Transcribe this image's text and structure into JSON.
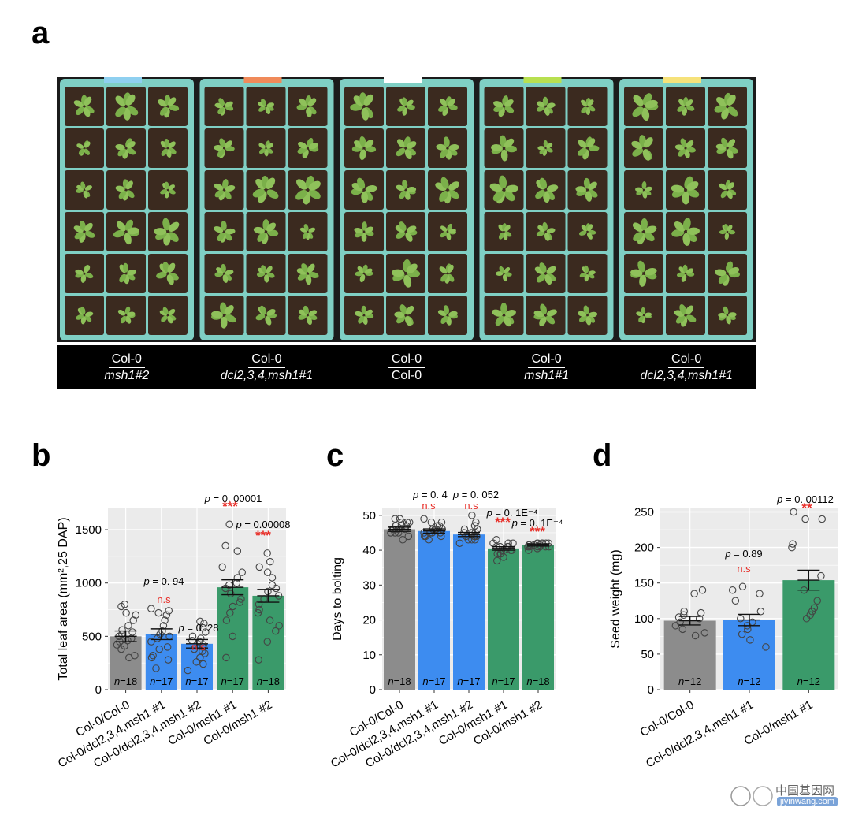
{
  "panels": {
    "a": "a",
    "b": "b",
    "c": "c",
    "d": "d"
  },
  "photo_labels": [
    {
      "top": "Col-0",
      "bottom": "msh1#2"
    },
    {
      "top": "Col-0",
      "bottom": "dcl2,3,4,msh1#1"
    },
    {
      "top": "Col-0",
      "bottom": "Col-0"
    },
    {
      "top": "Col-0",
      "bottom": "msh1#1"
    },
    {
      "top": "Col-0",
      "bottom": "dcl2,3,4,msh1#1"
    }
  ],
  "colors": {
    "grey": "#8c8c8c",
    "blue": "#3d8cf0",
    "green": "#3a9a6a",
    "red": "#e8302a",
    "panel_bg": "#ebebeb"
  },
  "chart_data": [
    {
      "type": "bar",
      "ylabel": "Total leaf area (mm²,25 DAP)",
      "ylim": [
        0,
        1700
      ],
      "yticks": [
        0,
        500,
        1000,
        1500
      ],
      "categories": [
        "Col-0/Col-0",
        "Col-0/dcl2,3,4,msh1 #1",
        "Col-0/dcl2,3,4,msh1 #2",
        "Col-0/msh1 #1",
        "Col-0/msh1 #2"
      ],
      "colors": [
        "grey",
        "blue",
        "blue",
        "green",
        "green"
      ],
      "values": [
        500,
        520,
        430,
        960,
        880
      ],
      "errors": [
        50,
        50,
        40,
        70,
        60
      ],
      "n_labels": [
        "n=18",
        "n=17",
        "n=17",
        "n=17",
        "n=18"
      ],
      "p_values": [
        "",
        "p = 0. 94",
        "p = 0. 28",
        "p = 0. 00001",
        "p = 0.00008"
      ],
      "sig": [
        "",
        "n.s",
        "n.s",
        "***",
        "***"
      ],
      "points": [
        [
          300,
          320,
          380,
          420,
          450,
          480,
          500,
          520,
          540,
          560,
          600,
          650,
          700,
          720,
          780,
          800,
          410,
          460
        ],
        [
          200,
          280,
          320,
          400,
          450,
          480,
          520,
          550,
          600,
          650,
          700,
          720,
          740,
          760,
          300,
          380,
          500
        ],
        [
          180,
          240,
          300,
          340,
          380,
          400,
          420,
          450,
          480,
          500,
          540,
          580,
          620,
          640,
          260,
          360,
          460
        ],
        [
          300,
          500,
          650,
          720,
          780,
          850,
          900,
          950,
          1000,
          1050,
          1100,
          1150,
          1300,
          1350,
          1550,
          820,
          980
        ],
        [
          280,
          450,
          550,
          650,
          720,
          800,
          850,
          880,
          920,
          980,
          1050,
          1100,
          1150,
          1200,
          1280,
          600,
          750,
          950
        ]
      ]
    },
    {
      "type": "bar",
      "ylabel": "Days to bolting",
      "ylim": [
        0,
        52
      ],
      "yticks": [
        0,
        10,
        20,
        30,
        40,
        50
      ],
      "categories": [
        "Col-0/Col-0",
        "Col-0/dcl2,3,4,msh1 #1",
        "Col-0/dcl2,3,4,msh1 #2",
        "Col-0/msh1 #1",
        "Col-0/msh1 #2"
      ],
      "colors": [
        "grey",
        "blue",
        "blue",
        "green",
        "green"
      ],
      "values": [
        46,
        45.5,
        44.5,
        40.5,
        41.5
      ],
      "errors": [
        0.6,
        0.6,
        0.6,
        0.5,
        0.3
      ],
      "n_labels": [
        "n=18",
        "n=17",
        "n=17",
        "n=17",
        "n=18"
      ],
      "p_values": [
        "",
        "p = 0. 4",
        "p = 0. 052",
        "p = 0. 1E⁻⁴",
        "p = 0. 1E⁻⁴"
      ],
      "sig": [
        "",
        "n.s",
        "n.s",
        "***",
        "***"
      ],
      "points": [
        [
          43,
          44,
          45,
          45,
          46,
          46,
          46,
          47,
          47,
          47,
          48,
          48,
          48,
          49,
          49,
          45,
          46,
          47
        ],
        [
          43,
          44,
          44,
          45,
          45,
          45,
          46,
          46,
          46,
          47,
          47,
          48,
          48,
          49,
          44,
          45,
          46
        ],
        [
          42,
          43,
          43,
          44,
          44,
          44,
          45,
          45,
          45,
          46,
          46,
          47,
          48,
          50,
          43,
          44,
          45
        ],
        [
          37,
          38,
          39,
          39,
          40,
          40,
          40,
          41,
          41,
          41,
          42,
          42,
          42,
          43,
          39,
          40,
          41
        ],
        [
          40,
          40.5,
          41,
          41,
          41,
          41.5,
          41.5,
          42,
          42,
          42,
          42,
          41,
          41,
          41.5,
          42,
          41,
          41.5,
          42
        ]
      ]
    },
    {
      "type": "bar",
      "ylabel": "Seed weight (mg)",
      "ylim": [
        0,
        255
      ],
      "yticks": [
        0,
        50,
        100,
        150,
        200,
        250
      ],
      "categories": [
        "Col-0/Col-0",
        "Col-0/dcl2,3,4,msh1 #1",
        "Col-0/msh1 #1"
      ],
      "colors": [
        "grey",
        "blue",
        "green"
      ],
      "values": [
        97,
        98,
        154
      ],
      "errors": [
        6,
        8,
        14
      ],
      "n_labels": [
        "n=12",
        "n=12",
        "n=12"
      ],
      "p_values": [
        "",
        "p = 0.89",
        "p = 0. 00112"
      ],
      "sig": [
        "",
        "n.s",
        "**"
      ],
      "points": [
        [
          76,
          80,
          85,
          90,
          95,
          100,
          102,
          105,
          108,
          110,
          135,
          140
        ],
        [
          60,
          70,
          78,
          85,
          90,
          95,
          100,
          110,
          125,
          135,
          140,
          145
        ],
        [
          100,
          105,
          110,
          115,
          125,
          140,
          160,
          200,
          205,
          240,
          240,
          250
        ]
      ]
    }
  ],
  "watermark": {
    "site": "中国基因网",
    "url": "jiyinwang.com"
  }
}
